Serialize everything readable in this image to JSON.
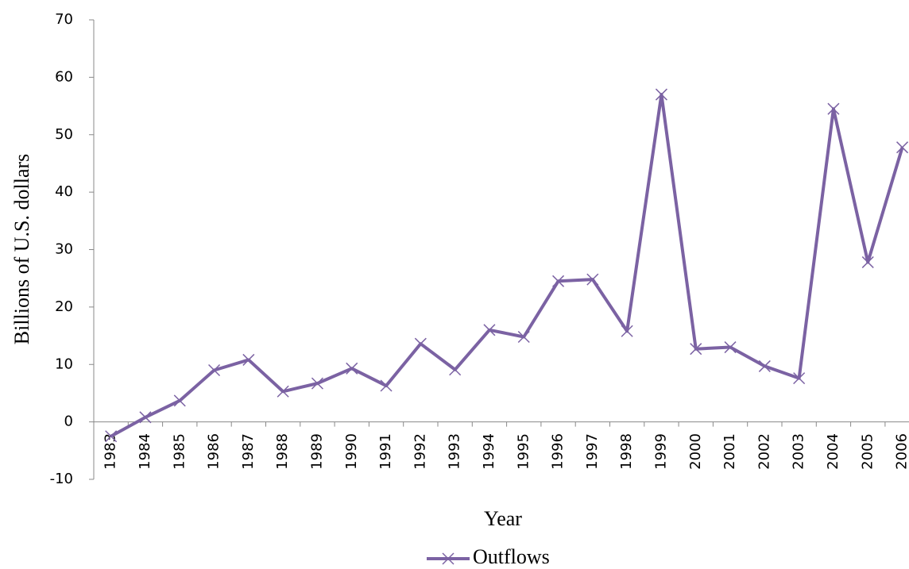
{
  "chart_data": {
    "type": "line",
    "x_label": "Year",
    "y_label": "Billions of U.S. dollars",
    "categories": [
      "1983",
      "1984",
      "1985",
      "1986",
      "1987",
      "1988",
      "1989",
      "1990",
      "1991",
      "1992",
      "1993",
      "1994",
      "1995",
      "1996",
      "1997",
      "1998",
      "1999",
      "2000",
      "2001",
      "2002",
      "2003",
      "2004",
      "2005",
      "2006"
    ],
    "series": [
      {
        "name": "Outflows",
        "color": "#7b62a3",
        "values": [
          -2.5,
          0.8,
          3.7,
          9,
          10.8,
          5.3,
          6.7,
          9.3,
          6.3,
          13.6,
          9.1,
          16,
          14.8,
          24.5,
          24.8,
          15.8,
          57,
          12.7,
          13,
          9.7,
          7.6,
          54.5,
          27.8,
          47.8
        ]
      }
    ],
    "ylim": [
      -10,
      70
    ],
    "yticks": [
      -10,
      0,
      10,
      20,
      30,
      40,
      50,
      60,
      70
    ],
    "legend": "bottom"
  }
}
